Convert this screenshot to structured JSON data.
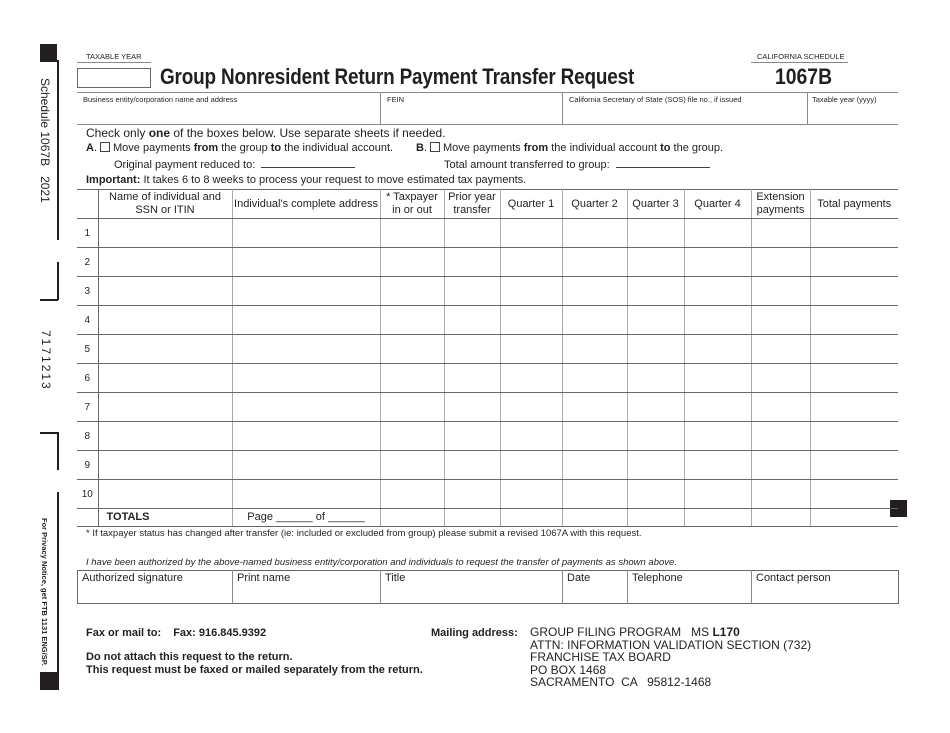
{
  "margin": {
    "schedule_label": "Schedule 1067B   2021",
    "barcode_number": "7171213",
    "privacy_notice": "For Privacy Notice, get FTB 1131 ENG/SP."
  },
  "header": {
    "taxable_year_label": "TAXABLE YEAR",
    "taxable_year_value": "",
    "title": "Group Nonresident Return Payment Transfer Request",
    "schedule_label": "CALIFORNIA SCHEDULE",
    "form_number": "1067B"
  },
  "info_fields": [
    {
      "label": "Business entity/corporation name and address",
      "value": ""
    },
    {
      "label": "FEIN",
      "value": ""
    },
    {
      "label": "California Secretary of State (SOS) file no., if issued",
      "value": ""
    },
    {
      "label": "Taxable year (yyyy)",
      "value": ""
    }
  ],
  "instructions": {
    "check_pre": "Check only ",
    "check_bold": "one",
    "check_post": " of the boxes below. Use separate sheets if needed.",
    "option_a": {
      "letter": "A",
      "t1": "Move payments ",
      "b1": "from",
      "t2": " the group ",
      "b2": "to",
      "t3": " the individual account.",
      "sub_label": "Original payment reduced to:",
      "checked": false
    },
    "option_b": {
      "letter": "B",
      "t1": "Move payments ",
      "b1": "from",
      "t2": " the individual account ",
      "b2": "to",
      "t3": " the group.",
      "sub_label": "Total amount transferred to group:",
      "checked": false
    },
    "important_bold": "Important:",
    "important_text": " It takes 6 to 8 weeks to process your request to move estimated tax payments."
  },
  "table": {
    "columns": [
      "",
      "Name of individual and SSN or ITIN",
      "Individual's complete address",
      "* Taxpayer in or out",
      "Prior year transfer",
      "Quarter 1",
      "Quarter 2",
      "Quarter 3",
      "Quarter 4",
      "Extension payments",
      "Total payments"
    ],
    "rows": [
      "1",
      "2",
      "3",
      "4",
      "5",
      "6",
      "7",
      "8",
      "9",
      "10"
    ],
    "totals_label": "TOTALS",
    "page_label": "Page ______ of ______"
  },
  "footnote": "* If taxpayer status has changed after transfer (ie: included or excluded from group) please submit a revised 1067A with this request.",
  "authorization": "I have been authorized by the above-named business entity/corporation and individuals to request the transfer of payments as shown above.",
  "signature_fields": [
    "Authorized signature",
    "Print name",
    "Title",
    "Date",
    "Telephone",
    "Contact person"
  ],
  "footer": {
    "fax_label": "Fax or mail to:",
    "fax_number": "Fax: 916.845.9392",
    "note1": "Do not attach this request to the return.",
    "note2": "This request must be faxed or mailed separately from the return.",
    "mailing_label": "Mailing address:",
    "address_line1": "GROUP FILING PROGRAM   MS ",
    "address_line1_bold": "L170",
    "address_line2": "ATTN: INFORMATION VALIDATION SECTION (732)",
    "address_line3": "FRANCHISE TAX BOARD",
    "address_line4": "PO BOX 1468",
    "address_line5": "SACRAMENTO  CA   95812-1468"
  }
}
